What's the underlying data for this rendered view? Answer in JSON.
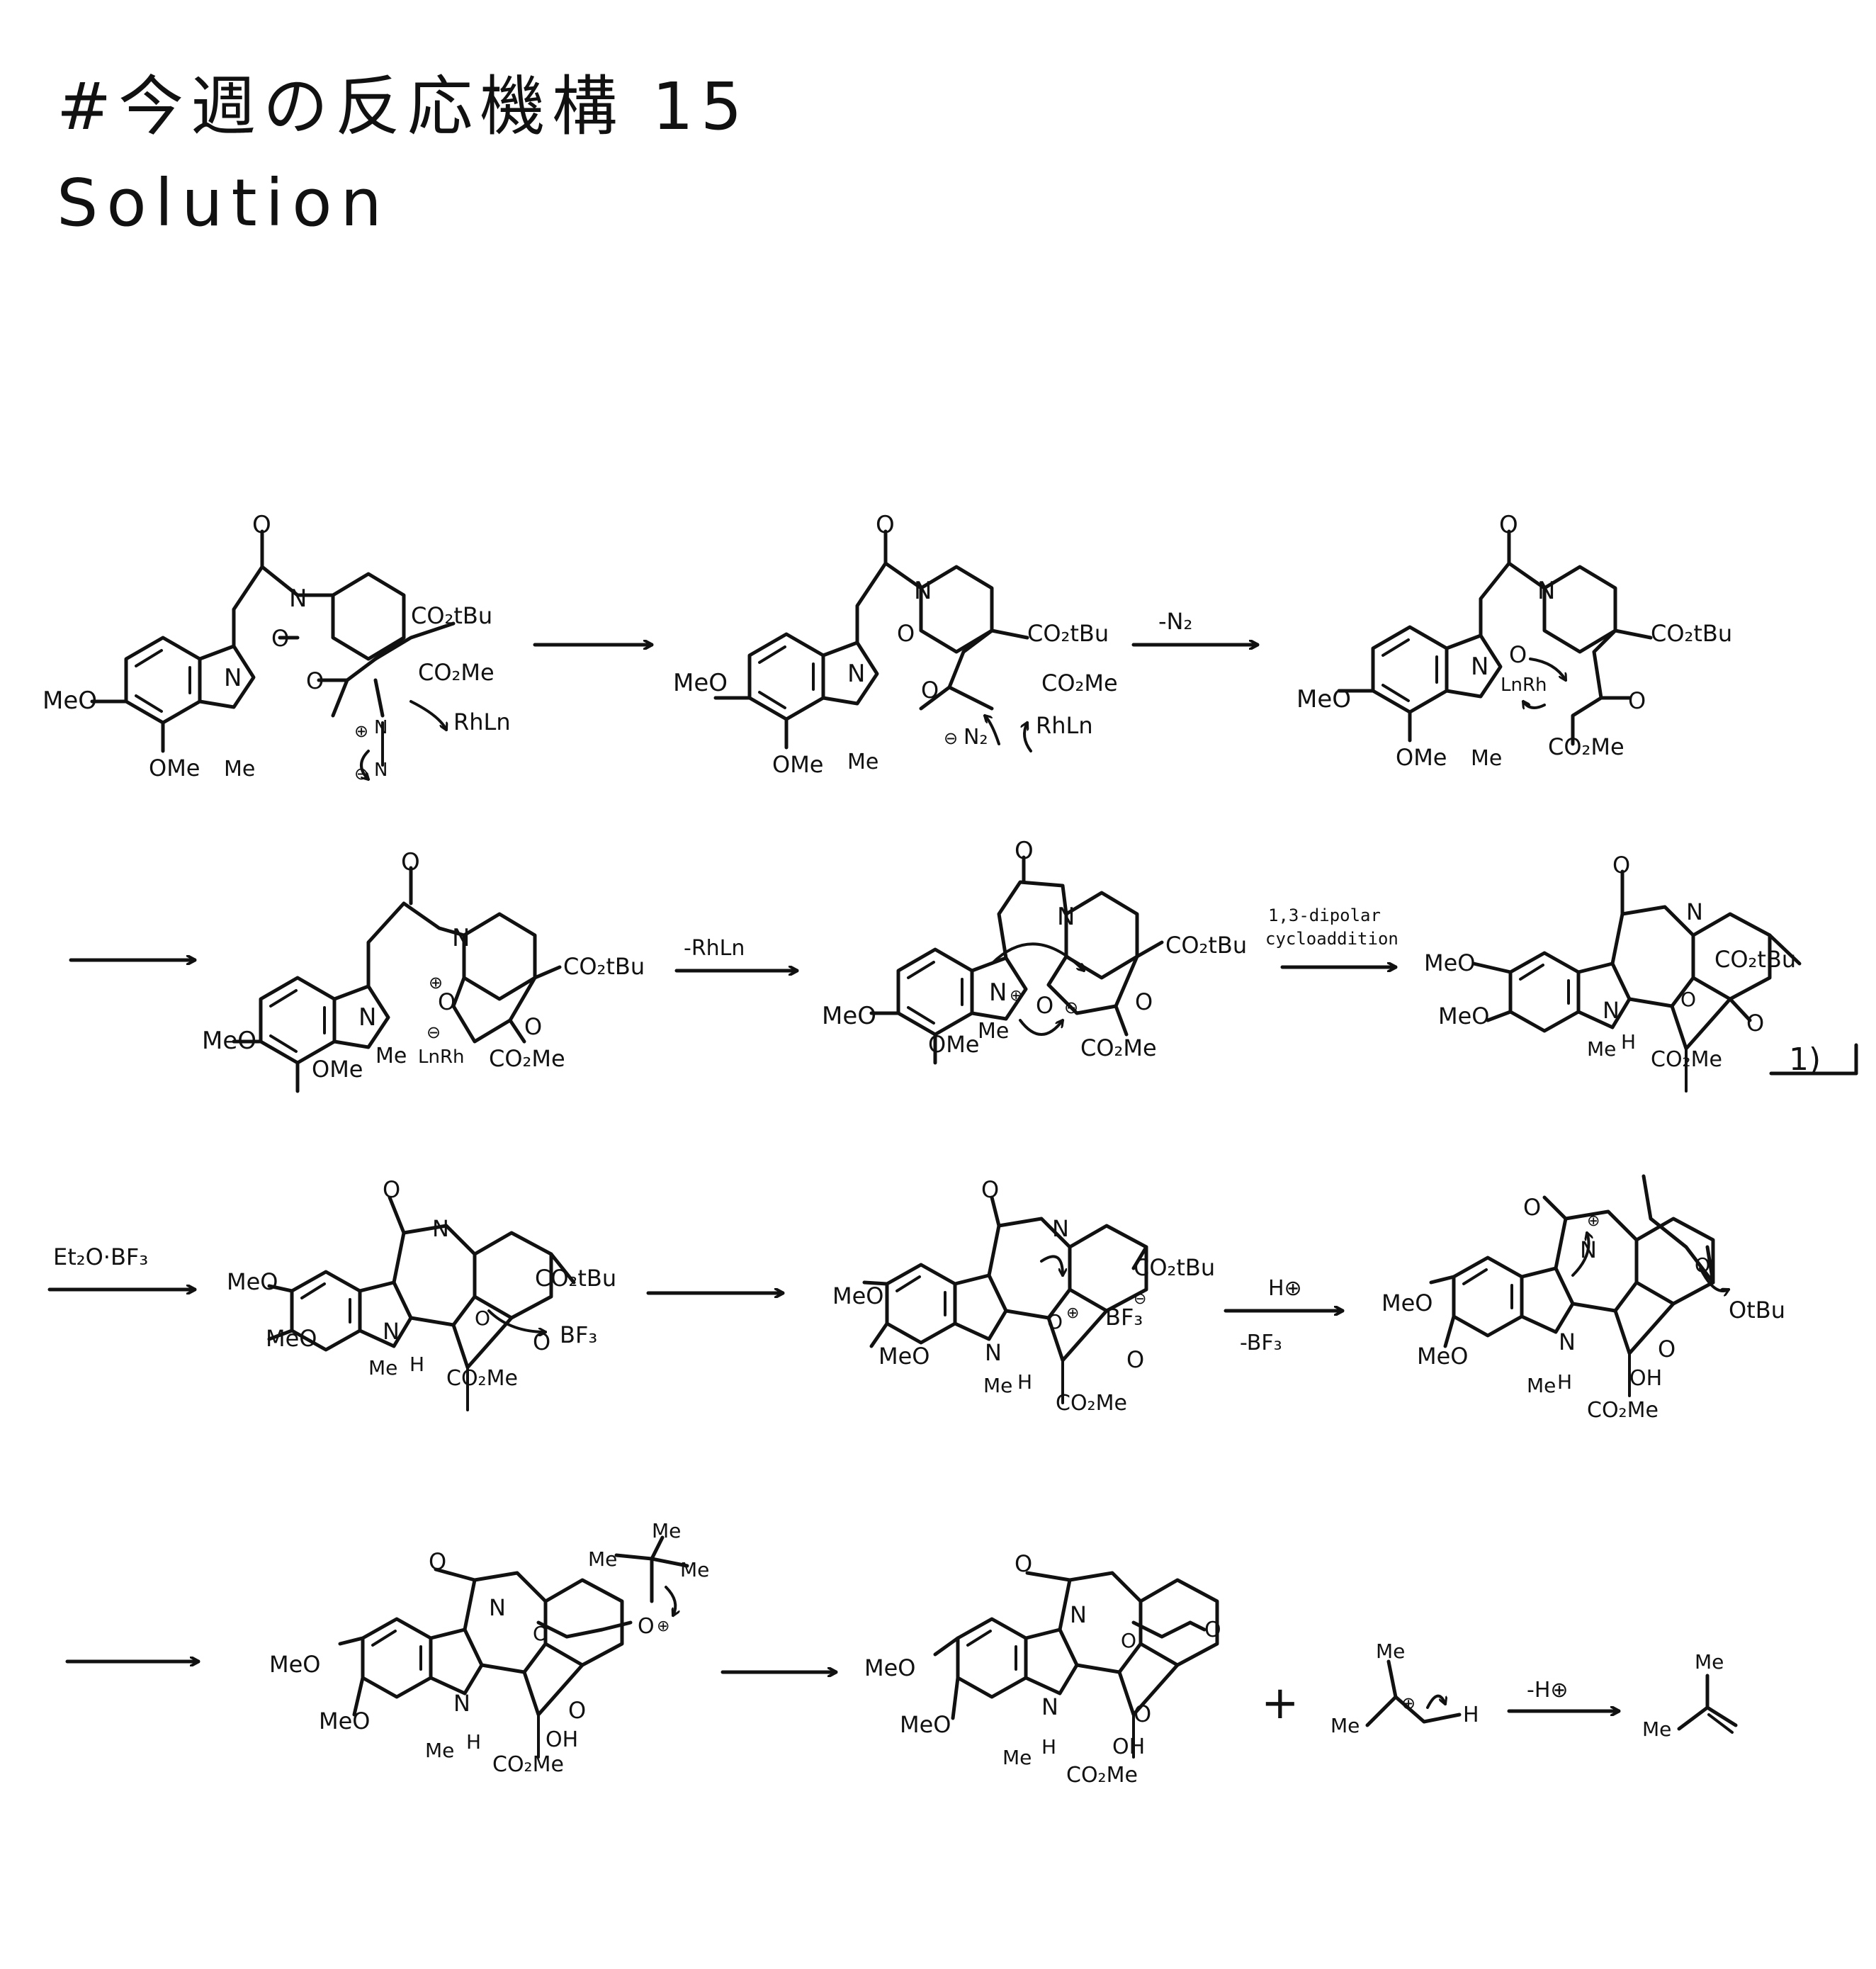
{
  "title": "#今週の反応機構 15",
  "subtitle": "Solution",
  "labels": {
    "MeO": "MeO",
    "OMe": "OMe",
    "Me": "Me",
    "N": "N",
    "O": "O",
    "H": "H",
    "OH": "OH",
    "CO2tBu": "CO₂tBu",
    "CO2Me": "CO₂Me",
    "RhLn": "RhLn",
    "LnRh": "LnRh",
    "N2": "N₂",
    "BF3": "BF₃",
    "OtBu": "OtBu",
    "plus_charge": "⊕",
    "minus_charge": "⊖"
  },
  "conditions": {
    "minus_N2": "-N₂",
    "minus_RhLn": "-RhLn",
    "dipolar_line1": "1,3-dipolar",
    "dipolar_line2": "cycloaddition",
    "step1_marker": "1)",
    "Et2O_BF3": "Et₂O·BF₃",
    "H_plus": "H⊕",
    "minus_BF3": "-BF₃",
    "minus_H_plus": "-H⊕",
    "plus_sign": "+"
  }
}
